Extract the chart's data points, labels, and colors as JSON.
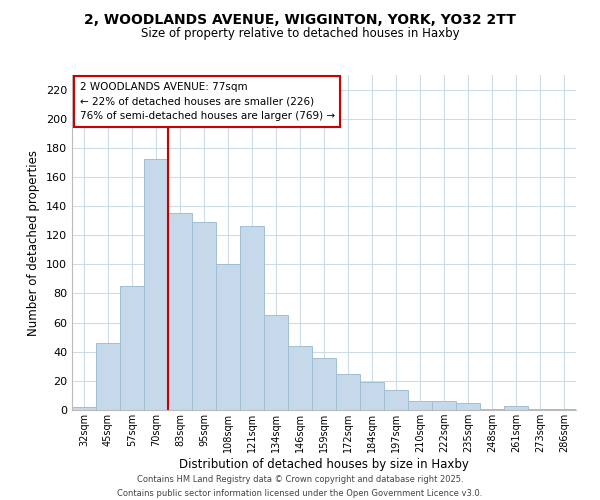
{
  "title1": "2, WOODLANDS AVENUE, WIGGINTON, YORK, YO32 2TT",
  "title2": "Size of property relative to detached houses in Haxby",
  "xlabel": "Distribution of detached houses by size in Haxby",
  "ylabel": "Number of detached properties",
  "categories": [
    "32sqm",
    "45sqm",
    "57sqm",
    "70sqm",
    "83sqm",
    "95sqm",
    "108sqm",
    "121sqm",
    "134sqm",
    "146sqm",
    "159sqm",
    "172sqm",
    "184sqm",
    "197sqm",
    "210sqm",
    "222sqm",
    "235sqm",
    "248sqm",
    "261sqm",
    "273sqm",
    "286sqm"
  ],
  "values": [
    2,
    46,
    85,
    172,
    135,
    129,
    100,
    126,
    65,
    44,
    36,
    25,
    19,
    14,
    6,
    6,
    5,
    1,
    3,
    1,
    1
  ],
  "bar_color": "#c6d9ea",
  "bar_edge_color": "#a0bfd4",
  "vline_color": "#cc0000",
  "annotation_title": "2 WOODLANDS AVENUE: 77sqm",
  "annotation_line1": "← 22% of detached houses are smaller (226)",
  "annotation_line2": "76% of semi-detached houses are larger (769) →",
  "annotation_box_color": "#ffffff",
  "annotation_box_edge": "#cc0000",
  "ylim": [
    0,
    230
  ],
  "yticks": [
    0,
    20,
    40,
    60,
    80,
    100,
    120,
    140,
    160,
    180,
    200,
    220
  ],
  "footer1": "Contains HM Land Registry data © Crown copyright and database right 2025.",
  "footer2": "Contains public sector information licensed under the Open Government Licence v3.0.",
  "background_color": "#ffffff",
  "grid_color": "#ccdde8"
}
